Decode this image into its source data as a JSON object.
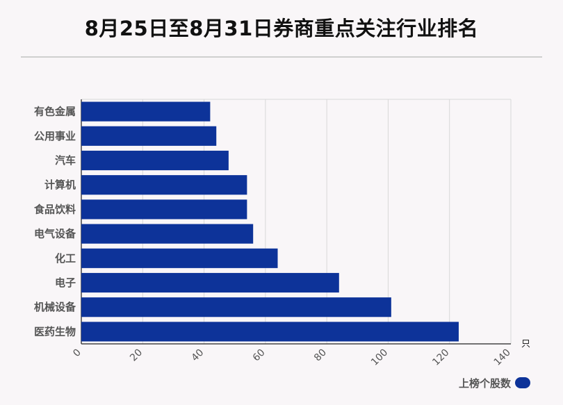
{
  "chart_data": {
    "type": "bar",
    "orientation": "horizontal",
    "title": "8月25日至8月31日券商重点关注行业排名",
    "categories": [
      "有色金属",
      "公用事业",
      "汽车",
      "计算机",
      "食品饮料",
      "电气设备",
      "化工",
      "电子",
      "机械设备",
      "医药生物"
    ],
    "series": [
      {
        "name": "上榜个股数",
        "values": [
          42,
          44,
          48,
          54,
          54,
          56,
          64,
          84,
          101,
          123
        ]
      }
    ],
    "x_ticks": [
      "0",
      "20",
      "40",
      "60",
      "80",
      "100",
      "120",
      "140"
    ],
    "xlim": [
      0,
      140
    ],
    "x_unit": "只",
    "grid": true,
    "legend_position": "bottom-right",
    "bar_color": "#0d3399"
  }
}
